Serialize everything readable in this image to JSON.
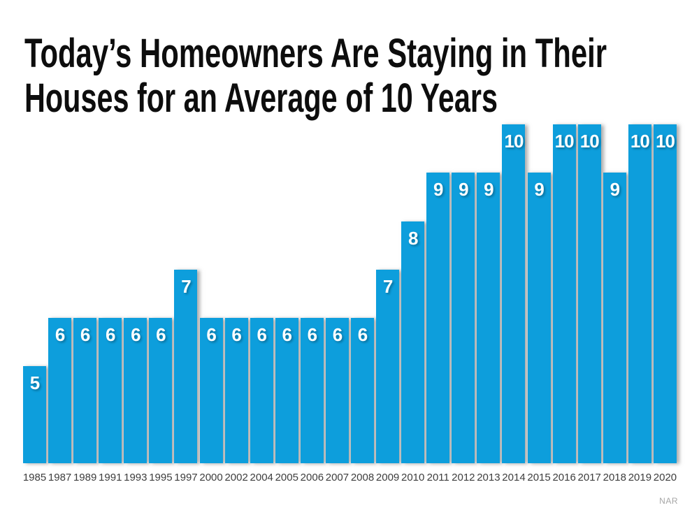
{
  "title": {
    "line1": "Today’s Homeowners Are Staying in Their",
    "line2": "Houses for an Average of 10 Years"
  },
  "colors": {
    "background": "#ffffff",
    "bar": "#0d9edc",
    "title_text": "#0d0d0d",
    "tick_text": "#3d3d3d",
    "value_text": "#ffffff",
    "source_text": "#a6a6a6"
  },
  "chart_data": {
    "type": "bar",
    "title": "Today’s Homeowners Are Staying in Their Houses for an Average of 10 Years",
    "categories": [
      "1985",
      "1987",
      "1989",
      "1991",
      "1993",
      "1995",
      "1997",
      "2000",
      "2002",
      "2004",
      "2005",
      "2006",
      "2007",
      "2008",
      "2009",
      "2010",
      "2011",
      "2012",
      "2013",
      "2014",
      "2015",
      "2016",
      "2017",
      "2018",
      "2019",
      "2020"
    ],
    "values": [
      5,
      6,
      6,
      6,
      6,
      6,
      7,
      6,
      6,
      6,
      6,
      6,
      6,
      6,
      7,
      8,
      9,
      9,
      9,
      10,
      9,
      10,
      10,
      9,
      10,
      10
    ],
    "xlabel": "",
    "ylabel": "",
    "ylim": [
      3,
      10
    ],
    "grid": false,
    "legend": false,
    "bar_labels_shown": true,
    "source_note": "NAR"
  }
}
